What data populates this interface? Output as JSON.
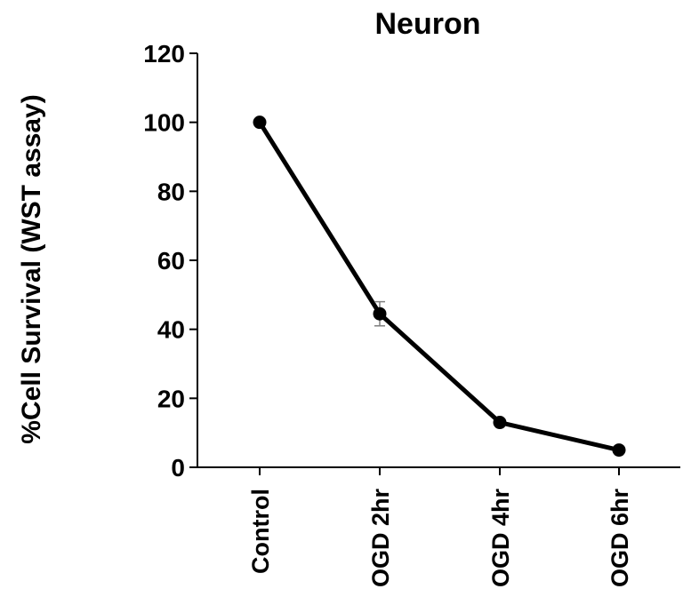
{
  "chart_data": {
    "type": "line",
    "title": "Neuron",
    "ylabel": "%Cell Survival (WST assay)",
    "xlabel": "",
    "categories": [
      "Control",
      "OGD 2hr",
      "OGD 4hr",
      "OGD 6hr"
    ],
    "series": [
      {
        "values": [
          100,
          44.5,
          13,
          5
        ],
        "errors": [
          0,
          3.5,
          0,
          0
        ]
      }
    ],
    "ylim": [
      0,
      120
    ],
    "yticks": [
      "0",
      "20",
      "40",
      "60",
      "80",
      "100",
      "120"
    ],
    "grid": false,
    "legend": "none",
    "colors": {
      "line": "#000000",
      "marker": "#000000",
      "error_bar": "#7f7f7f"
    }
  }
}
